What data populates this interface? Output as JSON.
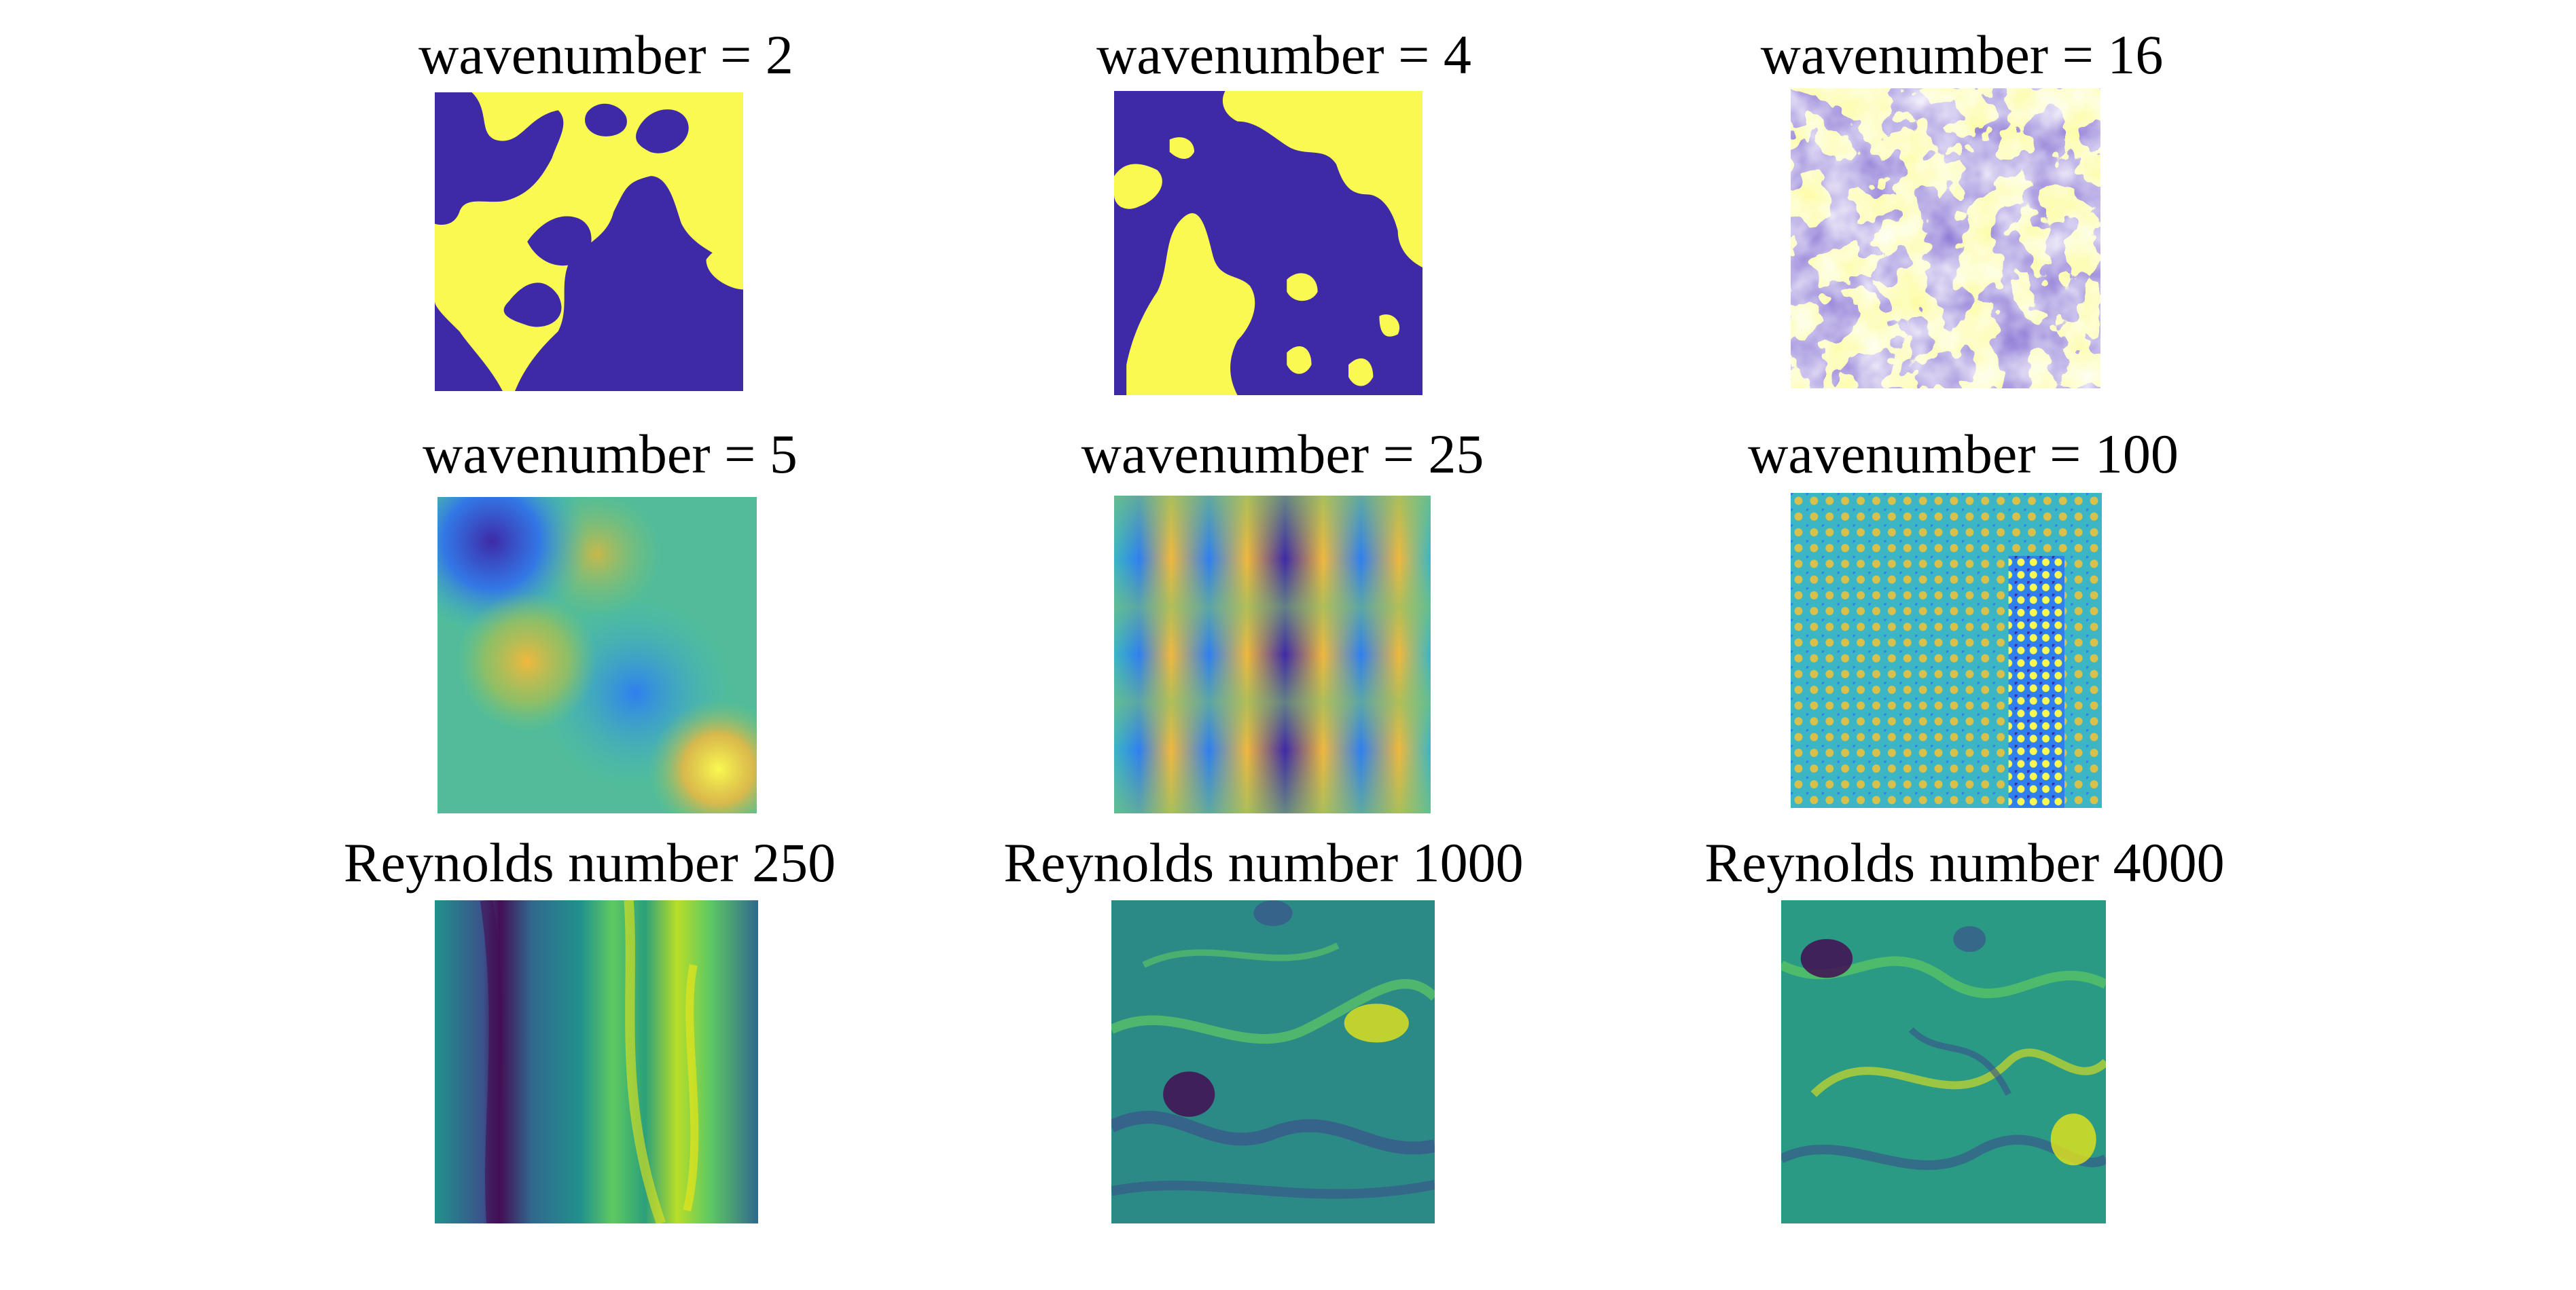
{
  "figure": {
    "panels": [
      {
        "title": "wavenumber = 2",
        "colormap": "binary-parula",
        "colors": [
          "#3e2aa6",
          "#f9f951"
        ]
      },
      {
        "title": "wavenumber = 4",
        "colormap": "binary-parula",
        "colors": [
          "#3e2aa6",
          "#f9f951"
        ]
      },
      {
        "title": "wavenumber = 16",
        "colormap": "binary-parula",
        "colors": [
          "#3e2aa6",
          "#f9f951"
        ]
      },
      {
        "title": "wavenumber = 5",
        "colormap": "parula",
        "colors": [
          "#3e2aa6",
          "#2f7fef",
          "#3cb6c4",
          "#7fc46c",
          "#f0b83e",
          "#f9f951"
        ]
      },
      {
        "title": "wavenumber = 25",
        "colormap": "parula",
        "colors": [
          "#3e2aa6",
          "#2f7fef",
          "#3cb6c4",
          "#7fc46c",
          "#f0b83e",
          "#f9f951"
        ]
      },
      {
        "title": "wavenumber = 100",
        "colormap": "parula",
        "colors": [
          "#3e2aa6",
          "#2f7fef",
          "#3cb6c4",
          "#7fc46c",
          "#f0b83e",
          "#f9f951"
        ]
      },
      {
        "title": "Reynolds number 250",
        "colormap": "viridis",
        "colors": [
          "#440d54",
          "#3b528b",
          "#21918c",
          "#5ec962",
          "#e6e419"
        ]
      },
      {
        "title": "Reynolds number 1000",
        "colormap": "viridis",
        "colors": [
          "#440d54",
          "#3b528b",
          "#21918c",
          "#5ec962",
          "#e6e419"
        ]
      },
      {
        "title": "Reynolds number 4000",
        "colormap": "viridis",
        "colors": [
          "#440d54",
          "#3b528b",
          "#21918c",
          "#5ec962",
          "#e6e419"
        ]
      }
    ]
  }
}
